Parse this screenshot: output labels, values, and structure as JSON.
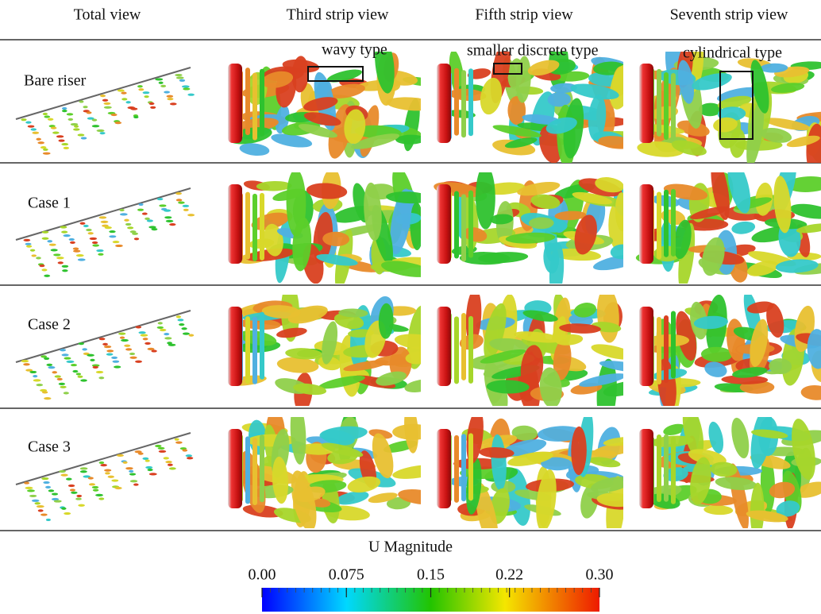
{
  "header": {
    "columns": [
      "Total view",
      "Third strip view",
      "Fifth strip view",
      "Seventh strip view"
    ]
  },
  "rows": [
    {
      "label": "Bare riser"
    },
    {
      "label": "Case 1"
    },
    {
      "label": "Case 2"
    },
    {
      "label": "Case 3"
    }
  ],
  "annotations": [
    "wavy type",
    "smaller discrete type",
    "cylindrical type"
  ],
  "colorbar": {
    "title": "U Magnitude",
    "lim": [
      0,
      0.3
    ],
    "ticks": [
      {
        "value": 0,
        "label": "0.00"
      },
      0.075,
      0.15,
      0.22,
      {
        "value": 0.3,
        "label": "0.30"
      }
    ]
  }
}
